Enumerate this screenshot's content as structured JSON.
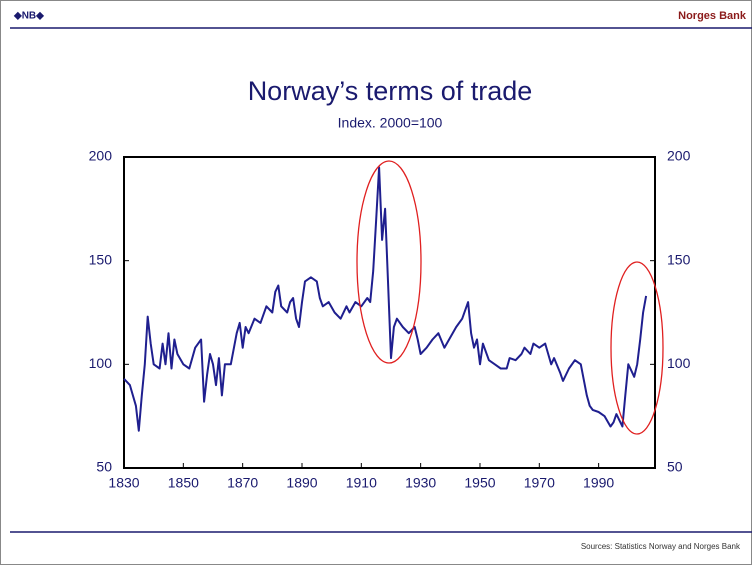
{
  "header": {
    "logo": "◆NB◆",
    "bank": "Norges Bank"
  },
  "chart_data": {
    "type": "line",
    "title": "Norway’s terms of trade",
    "subtitle": "Index. 2000=100",
    "x": [
      1830,
      1832,
      1834,
      1835,
      1836,
      1837,
      1838,
      1839,
      1840,
      1842,
      1843,
      1844,
      1845,
      1846,
      1847,
      1848,
      1850,
      1852,
      1854,
      1856,
      1857,
      1858,
      1859,
      1860,
      1861,
      1862,
      1863,
      1864,
      1866,
      1868,
      1869,
      1870,
      1871,
      1872,
      1874,
      1876,
      1878,
      1880,
      1881,
      1882,
      1883,
      1885,
      1886,
      1887,
      1888,
      1889,
      1890,
      1891,
      1893,
      1895,
      1896,
      1897,
      1899,
      1901,
      1903,
      1905,
      1906,
      1908,
      1910,
      1912,
      1913,
      1914,
      1915,
      1916,
      1917,
      1918,
      1919,
      1920,
      1921,
      1922,
      1924,
      1926,
      1928,
      1929,
      1930,
      1932,
      1934,
      1936,
      1938,
      1940,
      1942,
      1944,
      1946,
      1947,
      1948,
      1949,
      1950,
      1951,
      1953,
      1955,
      1957,
      1959,
      1960,
      1962,
      1964,
      1965,
      1967,
      1968,
      1970,
      1972,
      1973,
      1974,
      1975,
      1977,
      1978,
      1980,
      1982,
      1984,
      1986,
      1987,
      1988,
      1990,
      1992,
      1994,
      1995,
      1996,
      1997,
      1998,
      1999,
      2000,
      2001,
      2002,
      2003,
      2004,
      2005,
      2006
    ],
    "y": [
      93,
      90,
      80,
      68,
      85,
      100,
      123,
      110,
      100,
      98,
      110,
      100,
      115,
      98,
      112,
      105,
      100,
      98,
      108,
      112,
      82,
      95,
      105,
      100,
      90,
      103,
      85,
      100,
      100,
      115,
      120,
      108,
      118,
      115,
      122,
      120,
      128,
      125,
      135,
      138,
      128,
      125,
      130,
      132,
      122,
      118,
      130,
      140,
      142,
      140,
      132,
      128,
      130,
      125,
      122,
      128,
      125,
      130,
      128,
      132,
      130,
      145,
      170,
      195,
      160,
      175,
      140,
      103,
      118,
      122,
      118,
      115,
      118,
      112,
      105,
      108,
      112,
      115,
      108,
      113,
      118,
      122,
      130,
      115,
      108,
      112,
      100,
      110,
      102,
      100,
      98,
      98,
      103,
      102,
      105,
      108,
      105,
      110,
      108,
      110,
      105,
      100,
      103,
      96,
      92,
      98,
      102,
      100,
      85,
      80,
      78,
      77,
      75,
      70,
      72,
      76,
      73,
      70,
      85,
      100,
      97,
      94,
      100,
      112,
      125,
      133
    ],
    "color": "#1f1f8f",
    "xlim": [
      1830,
      2009
    ],
    "xticks": [
      1830,
      1850,
      1870,
      1890,
      1910,
      1930,
      1950,
      1970,
      1990
    ],
    "ylim": [
      50,
      200
    ],
    "yticks": [
      50,
      100,
      150,
      200
    ],
    "y2lim": [
      50,
      200
    ],
    "y2ticks": [
      50,
      100,
      150,
      200
    ]
  },
  "footer": {
    "source": "Sources: Statistics Norway and Norges Bank"
  }
}
